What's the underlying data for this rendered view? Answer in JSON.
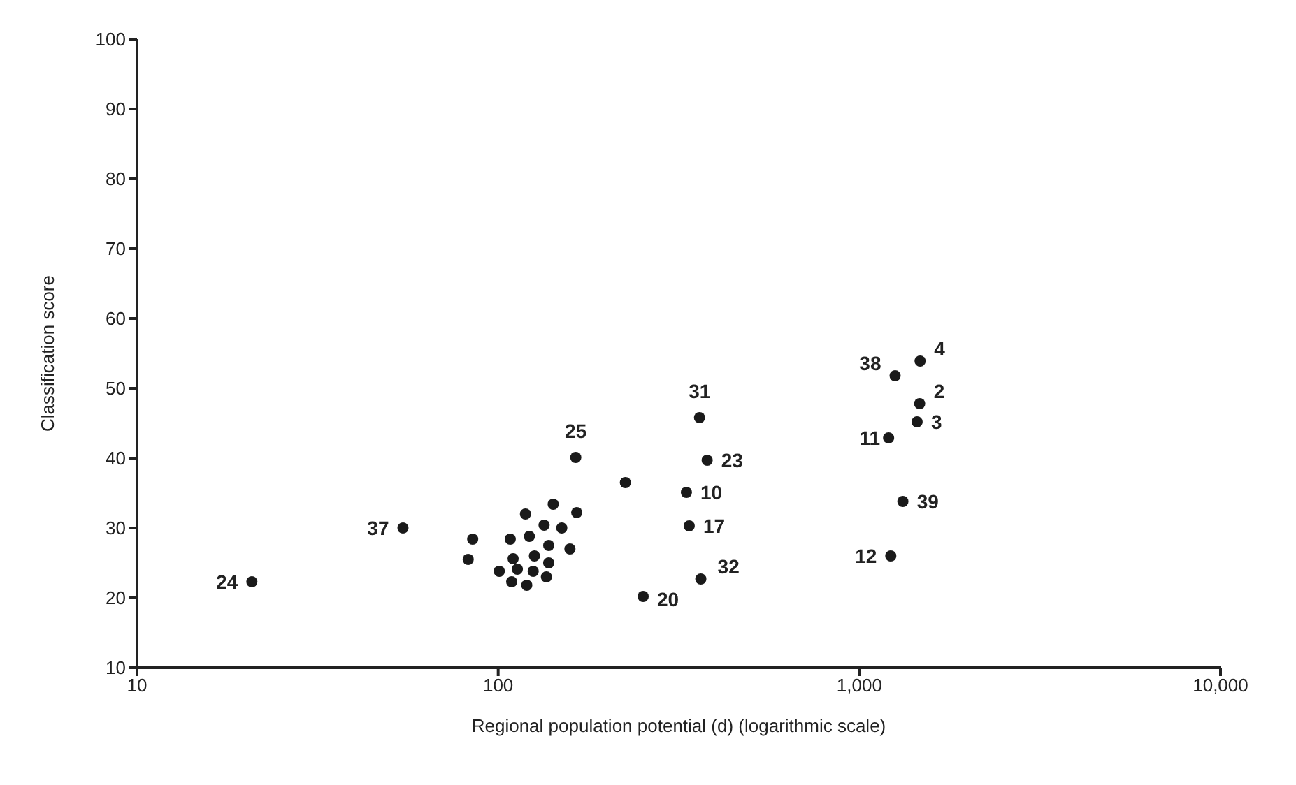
{
  "chart_data": {
    "type": "scatter",
    "xlabel": "Regional population potential (d) (logarithmic scale)",
    "ylabel": "Classification score",
    "log": "x",
    "grid": false,
    "legend": false,
    "marker": "circle",
    "xlim": [
      10,
      10000
    ],
    "xticks": [
      10,
      100,
      {
        "value": 1000,
        "label": "1,000"
      },
      {
        "value": 10000,
        "label": "10,000"
      }
    ],
    "ylim": [
      10,
      100
    ],
    "yticks": [
      10,
      20,
      30,
      40,
      50,
      60,
      70,
      80,
      90,
      100
    ],
    "series": [
      {
        "color": "#1a1a1a",
        "x": [
          20.8,
          54.5,
          164,
          225,
          85,
          82.6,
          100.7,
          108,
          110,
          113,
          109,
          120,
          119,
          122,
          126,
          125,
          136,
          138,
          138,
          134,
          142,
          150,
          165,
          158,
          361,
          379,
          332,
          338,
          364,
          252,
          1205,
          1469,
          1445,
          1320,
          1222,
          1256,
          1473
        ],
        "values": [
          22.3,
          30,
          40.1,
          36.5,
          28.4,
          25.5,
          23.8,
          28.4,
          25.6,
          24.1,
          22.3,
          21.8,
          32,
          28.8,
          26,
          23.8,
          23,
          25,
          27.5,
          30.4,
          33.4,
          30,
          32.2,
          27,
          45.8,
          39.7,
          35.1,
          30.3,
          22.7,
          20.2,
          42.9,
          47.8,
          45.2,
          33.8,
          26,
          51.8,
          53.9
        ]
      }
    ],
    "annotations": [
      {
        "text": "24",
        "x": 20.8,
        "y": 22.3
      },
      {
        "text": "37",
        "x": 54.5,
        "y": 30
      },
      {
        "text": "25",
        "x": 164,
        "y": 40.1
      },
      {
        "text": "31",
        "x": 361,
        "y": 45.8
      },
      {
        "text": "23",
        "x": 379,
        "y": 39.7
      },
      {
        "text": "10",
        "x": 332,
        "y": 35.1
      },
      {
        "text": "17",
        "x": 338,
        "y": 30.3
      },
      {
        "text": "32",
        "x": 364,
        "y": 22.7
      },
      {
        "text": "20",
        "x": 252,
        "y": 20.2
      },
      {
        "text": "11",
        "x": 1205,
        "y": 42.9
      },
      {
        "text": "2",
        "x": 1469,
        "y": 47.8
      },
      {
        "text": "3",
        "x": 1445,
        "y": 45.2
      },
      {
        "text": "39",
        "x": 1320,
        "y": 33.8
      },
      {
        "text": "12",
        "x": 1222,
        "y": 26
      },
      {
        "text": "38",
        "x": 1256,
        "y": 51.8
      },
      {
        "text": "4",
        "x": 1473,
        "y": 53.9
      }
    ]
  }
}
